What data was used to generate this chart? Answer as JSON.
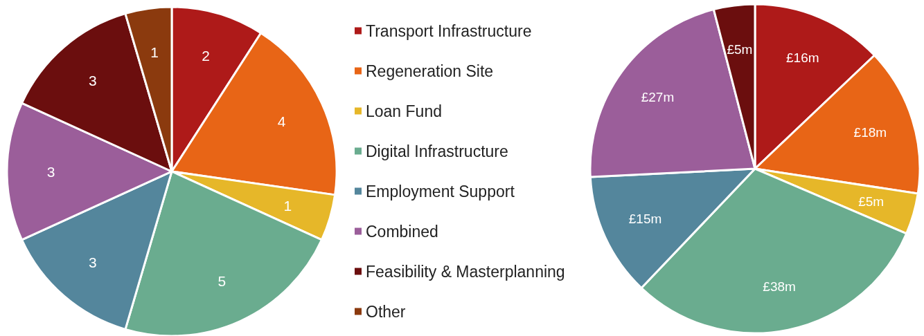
{
  "chart_data": [
    {
      "type": "pie",
      "categories": [
        "Transport Infrastructure",
        "Regeneration Site",
        "Loan Fund",
        "Digital Infrastructure",
        "Employment Support",
        "Combined",
        "Feasibility & Masterplanning",
        "Other"
      ],
      "values": [
        2,
        4,
        1,
        5,
        3,
        3,
        3,
        1
      ],
      "colors": [
        "#ae1a19",
        "#e86516",
        "#e6b729",
        "#6aac8f",
        "#54869c",
        "#9b5e9a",
        "#6b0e0e",
        "#8b3a0e"
      ],
      "data_labels": true,
      "legend": "right"
    },
    {
      "type": "pie",
      "categories": [
        null,
        null,
        null,
        null,
        null,
        null,
        null
      ],
      "values": [
        16,
        18,
        5,
        38,
        15,
        27,
        5
      ],
      "value_labels": [
        "£16m",
        "£18m",
        "£5m",
        "£38m",
        "£15m",
        "£27m",
        "£5m"
      ],
      "colors": [
        "#ae1a19",
        "#e86516",
        "#e6b729",
        "#6aac8f",
        "#54869c",
        "#9b5e9a",
        "#6b0e0e"
      ],
      "legend": false
    }
  ]
}
